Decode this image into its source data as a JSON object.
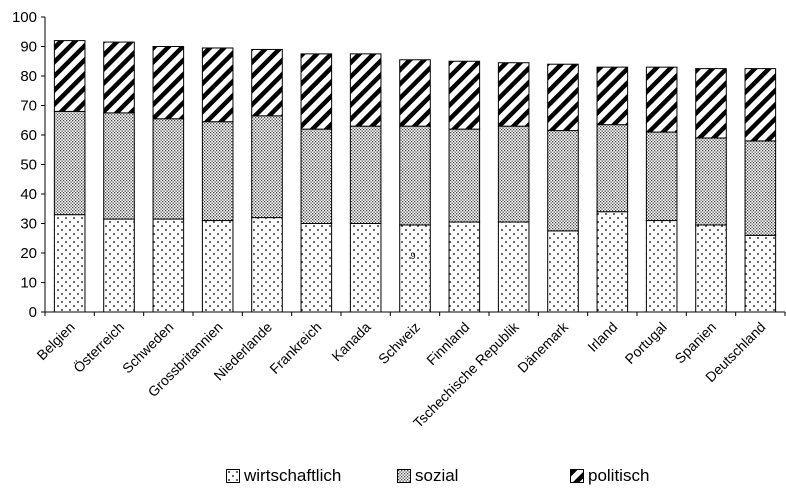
{
  "chart_data": {
    "type": "bar",
    "stacked": true,
    "categories": [
      "Belgien",
      "Österreich",
      "Schweden",
      "Grossbritannien",
      "Niederlande",
      "Frankreich",
      "Kanada",
      "Schweiz",
      "Finnland",
      "Tschechische Republik",
      "Dänemark",
      "Irland",
      "Portugal",
      "Spanien",
      "Deutschland"
    ],
    "series": [
      {
        "name": "wirtschaftlich",
        "pattern": "dots",
        "values": [
          33,
          31.5,
          31.5,
          31,
          32,
          30,
          30,
          29.5,
          30.5,
          30.5,
          27.5,
          34,
          31,
          29.5,
          26
        ]
      },
      {
        "name": "sozial",
        "pattern": "dense-dots",
        "values": [
          35,
          36,
          34,
          33.5,
          34.5,
          32,
          33,
          33.5,
          31.5,
          32.5,
          34,
          29.5,
          30,
          29.5,
          32
        ]
      },
      {
        "name": "politisch",
        "pattern": "diagonal-stripes",
        "values": [
          24,
          24,
          24.5,
          25,
          22.5,
          25.5,
          24.5,
          22.5,
          23,
          21.5,
          22.5,
          19.5,
          22,
          23.5,
          24.5
        ]
      }
    ],
    "ylim": [
      0,
      100
    ],
    "yticks": [
      0,
      10,
      20,
      30,
      40,
      50,
      60,
      70,
      80,
      90,
      100
    ],
    "grid": false,
    "legend_position": "bottom",
    "annotations": [
      "9"
    ],
    "colors": {
      "axis": "#000000",
      "fill": "#ffffff"
    }
  }
}
